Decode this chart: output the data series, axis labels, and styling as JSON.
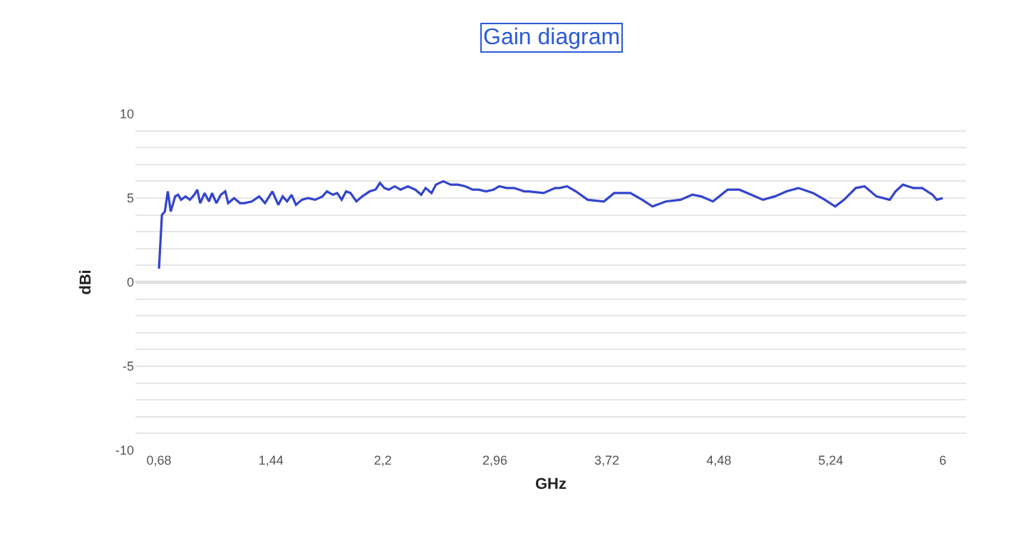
{
  "chart_data": {
    "type": "line",
    "title": "Gain diagram",
    "xlabel": "GHz",
    "ylabel": "dBi",
    "x": [
      0.68,
      0.7,
      0.72,
      0.74,
      0.76,
      0.79,
      0.81,
      0.83,
      0.86,
      0.89,
      0.92,
      0.94,
      0.96,
      0.99,
      1.02,
      1.04,
      1.07,
      1.1,
      1.13,
      1.15,
      1.19,
      1.23,
      1.26,
      1.31,
      1.36,
      1.4,
      1.45,
      1.49,
      1.52,
      1.55,
      1.58,
      1.61,
      1.65,
      1.69,
      1.74,
      1.79,
      1.82,
      1.86,
      1.89,
      1.92,
      1.95,
      1.98,
      2.02,
      2.06,
      2.11,
      2.15,
      2.18,
      2.21,
      2.24,
      2.28,
      2.32,
      2.37,
      2.42,
      2.46,
      2.49,
      2.53,
      2.56,
      2.61,
      2.66,
      2.71,
      2.76,
      2.81,
      2.85,
      2.9,
      2.95,
      2.99,
      3.04,
      3.09,
      3.16,
      3.19,
      3.29,
      3.37,
      3.4,
      3.45,
      3.51,
      3.59,
      3.7,
      3.77,
      3.88,
      3.96,
      4.03,
      4.12,
      4.22,
      4.3,
      4.36,
      4.44,
      4.54,
      4.62,
      4.7,
      4.78,
      4.86,
      4.94,
      5.02,
      5.12,
      5.2,
      5.27,
      5.33,
      5.41,
      5.47,
      5.55,
      5.64,
      5.68,
      5.73,
      5.8,
      5.86,
      5.93,
      5.96,
      6.0
    ],
    "series": [
      {
        "color": "#3344cc",
        "values": [
          0.8,
          4.0,
          4.2,
          5.4,
          4.2,
          5.1,
          5.2,
          4.9,
          5.1,
          4.9,
          5.2,
          5.5,
          4.7,
          5.3,
          4.8,
          5.3,
          4.7,
          5.2,
          5.4,
          4.7,
          5.0,
          4.7,
          4.7,
          4.8,
          5.1,
          4.7,
          5.4,
          4.6,
          5.1,
          4.8,
          5.2,
          4.6,
          4.9,
          5.0,
          4.9,
          5.1,
          5.4,
          5.2,
          5.3,
          4.9,
          5.4,
          5.3,
          4.8,
          5.1,
          5.4,
          5.5,
          5.9,
          5.6,
          5.5,
          5.7,
          5.5,
          5.7,
          5.5,
          5.2,
          5.6,
          5.3,
          5.8,
          6.0,
          5.8,
          5.8,
          5.7,
          5.5,
          5.5,
          5.4,
          5.5,
          5.7,
          5.6,
          5.6,
          5.4,
          5.4,
          5.3,
          5.6,
          5.6,
          5.7,
          5.4,
          4.9,
          4.8,
          5.3,
          5.3,
          4.9,
          4.5,
          4.8,
          4.9,
          5.2,
          5.1,
          4.8,
          5.5,
          5.5,
          5.2,
          4.9,
          5.1,
          5.4,
          5.6,
          5.3,
          4.9,
          4.5,
          4.9,
          5.6,
          5.7,
          5.1,
          4.9,
          5.4,
          5.8,
          5.6,
          5.6,
          5.2,
          4.9,
          5.0
        ]
      }
    ],
    "xlim": [
      0.52,
      6.16
    ],
    "xticks": [
      {
        "value": 0.68,
        "label": "0,68"
      },
      {
        "value": 1.44,
        "label": "1,44"
      },
      {
        "value": 2.2,
        "label": "2,2"
      },
      {
        "value": 2.96,
        "label": "2,96"
      },
      {
        "value": 3.72,
        "label": "3,72"
      },
      {
        "value": 4.48,
        "label": "4,48"
      },
      {
        "value": 5.24,
        "label": "5,24"
      },
      6
    ],
    "ylim": [
      -10,
      10
    ],
    "yticks": [
      -10,
      {
        "value": -9,
        "label": null
      },
      {
        "value": -8,
        "label": null
      },
      {
        "value": -7,
        "label": null
      },
      {
        "value": -6,
        "label": null
      },
      -5,
      {
        "value": -4,
        "label": null
      },
      {
        "value": -3,
        "label": null
      },
      {
        "value": -2,
        "label": null
      },
      {
        "value": -1,
        "label": null
      },
      0,
      {
        "value": 1,
        "label": null
      },
      {
        "value": 2,
        "label": null
      },
      {
        "value": 3,
        "label": null
      },
      {
        "value": 4,
        "label": null
      },
      5,
      {
        "value": 6,
        "label": null
      },
      {
        "value": 7,
        "label": null
      },
      {
        "value": 8,
        "label": null
      },
      {
        "value": 9,
        "label": null
      },
      10
    ],
    "grid": "y",
    "ref_lines": [
      {
        "axis": "y",
        "value": 0,
        "color": "#aaaaaa"
      }
    ],
    "marker": "none",
    "line_style": "solid"
  }
}
